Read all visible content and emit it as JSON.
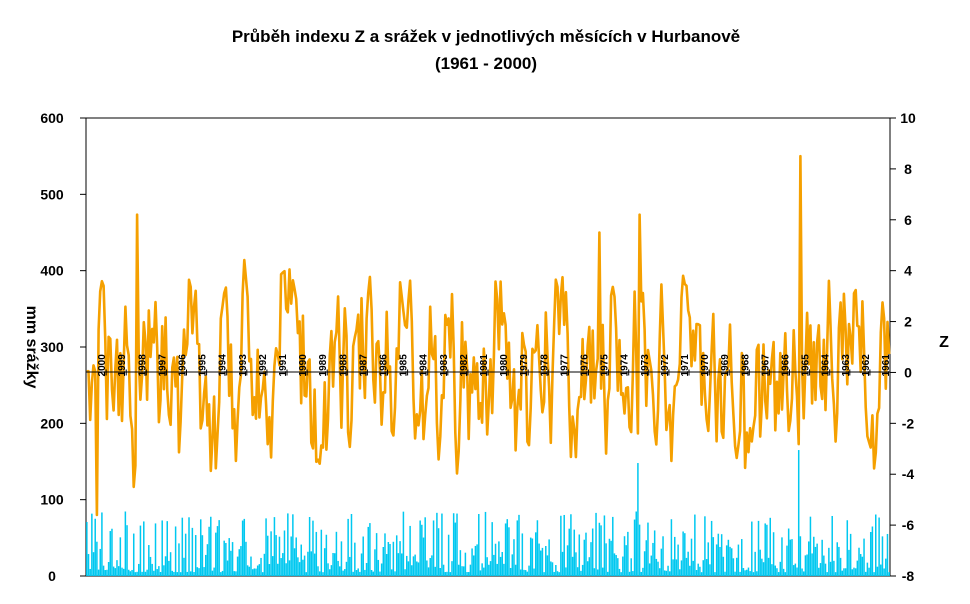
{
  "chart_data": {
    "type": "bar+line",
    "orientation": "rotated-180",
    "title": "Průběh indexu Z a srážek v jednotlivých měsících v Hurbanově",
    "subtitle": "(1961 - 2000)",
    "ylabel_left": "Z",
    "ylabel_right": "mm srážky",
    "ylim_left": [
      -8,
      10
    ],
    "yticks_left": [
      "-8",
      "-6",
      "-4",
      "-2",
      "0",
      "2",
      "4",
      "6",
      "8",
      "10"
    ],
    "ylim_right": [
      0,
      600
    ],
    "yticks_right": [
      "0",
      "100",
      "200",
      "300",
      "400",
      "500",
      "600"
    ],
    "years": [
      "1961",
      "1962",
      "1963",
      "1964",
      "1965",
      "1966",
      "1967",
      "1968",
      "1969",
      "1970",
      "1971",
      "1972",
      "1973",
      "1974",
      "1975",
      "1976",
      "1977",
      "1978",
      "1979",
      "1980",
      "1981",
      "1982",
      "1983",
      "1984",
      "1985",
      "1986",
      "1987",
      "1988",
      "1989",
      "1990",
      "1991",
      "1992",
      "1993",
      "1994",
      "1995",
      "1996",
      "1997",
      "1998",
      "1999",
      "2000"
    ],
    "series": [
      {
        "kind": "bar",
        "axis": "right",
        "color": "#00c8f0",
        "notable_peaks_mm": [
          {
            "year": "1965",
            "value": 165
          },
          {
            "year": "1973",
            "value": 148
          },
          {
            "year": "2000",
            "value": 75
          }
        ]
      },
      {
        "kind": "line",
        "axis": "left",
        "color": "#f5a000",
        "notable_extremes": [
          {
            "year": "1965",
            "value": 8.5
          },
          {
            "year": "1973",
            "value": 6.2
          },
          {
            "year": "1975",
            "value": 5.5
          },
          {
            "year": "1998",
            "value": 6.2
          },
          {
            "year": "2000",
            "value": -5.6
          }
        ]
      }
    ]
  }
}
